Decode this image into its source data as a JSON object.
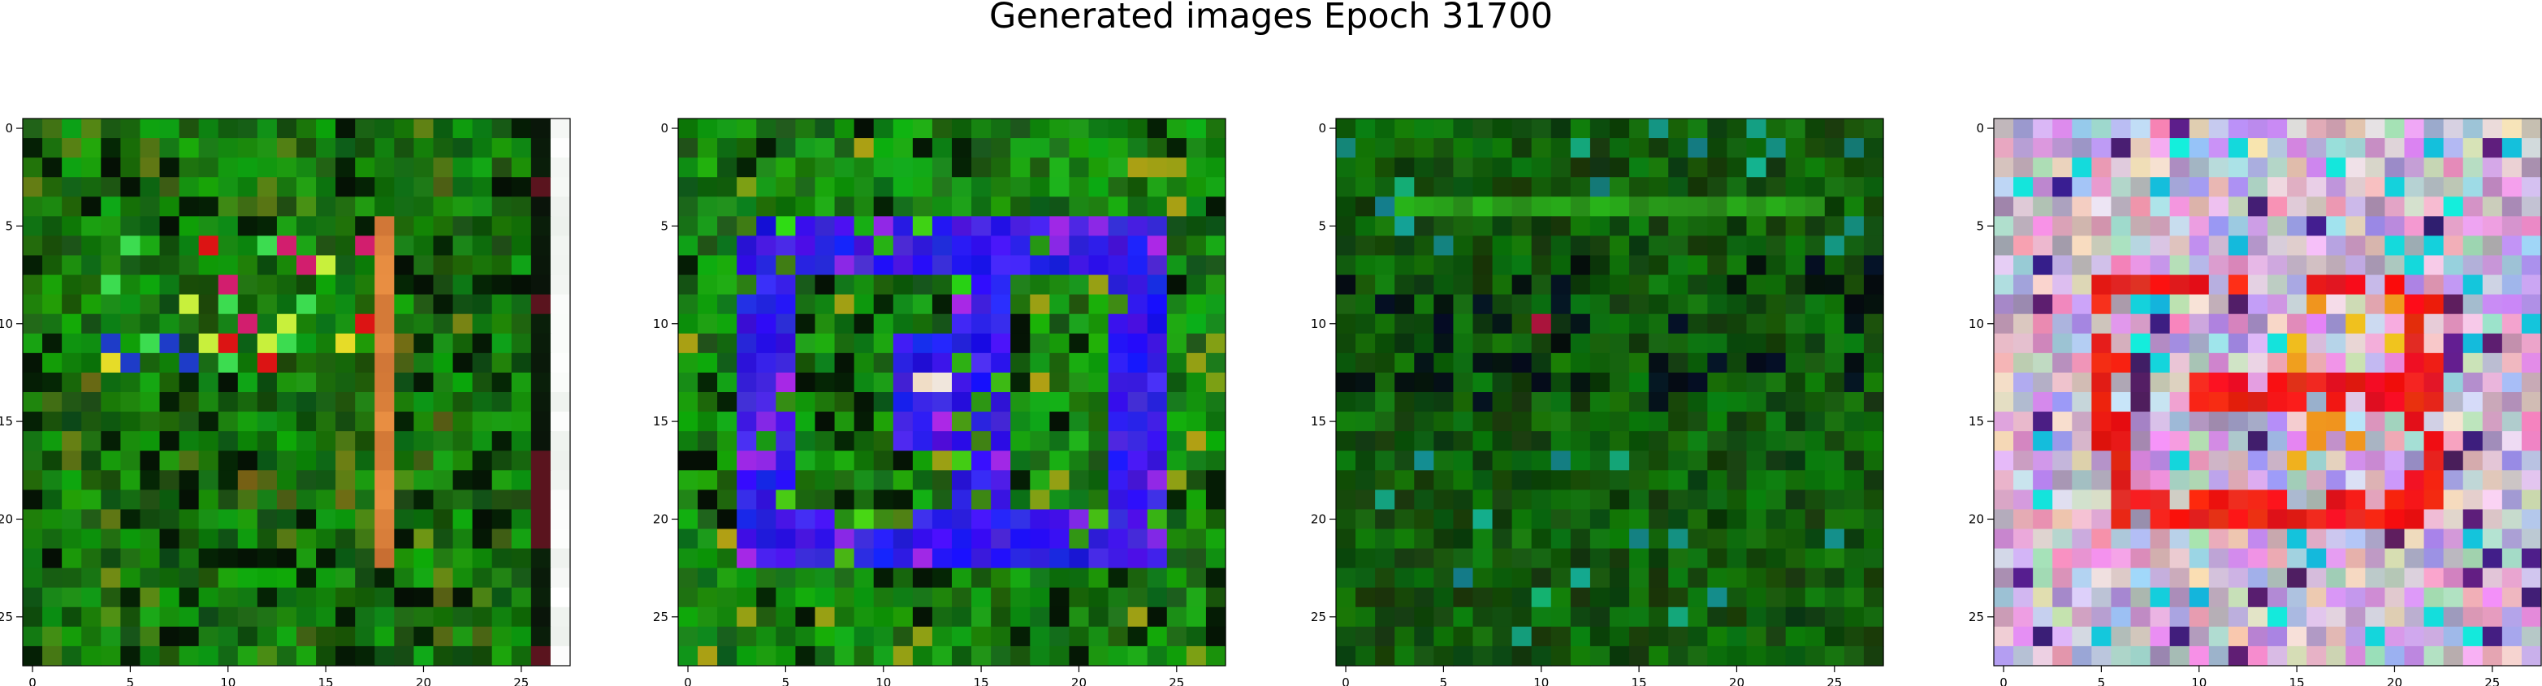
{
  "figure": {
    "title": "Generated images Epoch 31700"
  },
  "chart_data": [
    {
      "type": "heatmap",
      "rows": 28,
      "cols": 28,
      "xlim": [
        -0.5,
        27.5
      ],
      "ylim": [
        27.5,
        -0.5
      ],
      "xticks": [
        0,
        5,
        10,
        15,
        20,
        25
      ],
      "yticks": [
        0,
        5,
        10,
        15,
        20,
        25
      ],
      "theme": "green-noise",
      "features": [
        "orange vertical streak at column 18",
        "white border at column 27",
        "bright multicolor pixels rows 6-12"
      ],
      "colors": {
        "base": "#1d6b10",
        "dark": "#0a2a06",
        "accent1": "#e07a3c",
        "accent2": "#f2f2f2"
      }
    },
    {
      "type": "heatmap",
      "rows": 28,
      "cols": 28,
      "xlim": [
        -0.5,
        27.5
      ],
      "ylim": [
        27.5,
        -0.5
      ],
      "xticks": [
        0,
        5,
        10,
        15,
        20,
        25
      ],
      "yticks": [
        0,
        5,
        10,
        15,
        20,
        25
      ],
      "theme": "blue-square",
      "features": [
        "blue ring pattern rows 5-22, columns 3-24"
      ],
      "colors": {
        "base": "#1d6b10",
        "dark": "#0a2a06",
        "accent1": "#3a1cff",
        "accent2": "#7a2cff"
      }
    },
    {
      "type": "heatmap",
      "rows": 28,
      "cols": 28,
      "xlim": [
        -0.5,
        27.5
      ],
      "ylim": [
        27.5,
        -0.5
      ],
      "xticks": [
        0,
        5,
        10,
        15,
        20,
        25
      ],
      "yticks": [
        0,
        5,
        10,
        15,
        20,
        25
      ],
      "theme": "dark-green",
      "features": [
        "faint horizontal band at row 4",
        "dark pixels rows 7-14"
      ],
      "colors": {
        "base": "#1a5c0e",
        "dark": "#061c04",
        "accent1": "#2a8a1a",
        "accent2": "#101840"
      }
    },
    {
      "type": "heatmap",
      "rows": 28,
      "cols": 28,
      "xlim": [
        -0.5,
        27.5
      ],
      "ylim": [
        27.5,
        -0.5
      ],
      "xticks": [
        0,
        5,
        10,
        15,
        20,
        25
      ],
      "yticks": [
        0,
        5,
        10,
        15,
        20,
        25
      ],
      "theme": "pastel-red",
      "features": [
        "red ring pattern rows 8-20, columns 5-22",
        "pastel multicolor background"
      ],
      "colors": {
        "base": "#d8b8e0",
        "dark": "#5a3a6a",
        "accent1": "#ee1111",
        "accent2": "#ff8833"
      }
    }
  ]
}
